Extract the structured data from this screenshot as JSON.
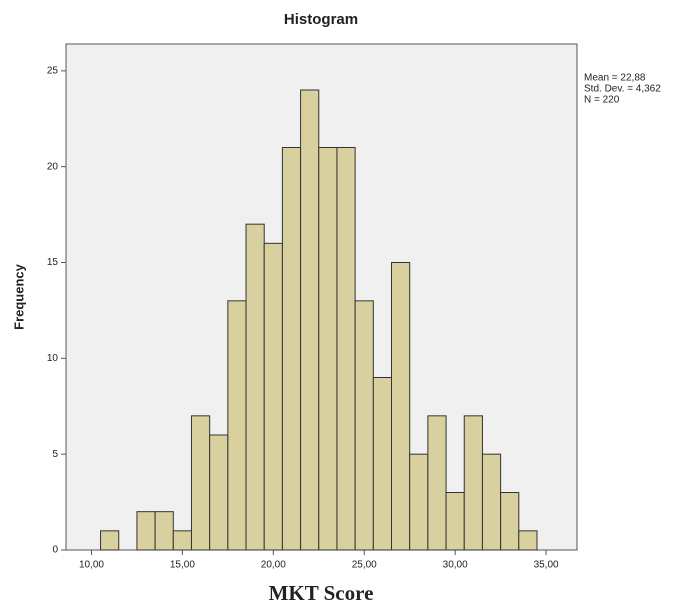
{
  "chart_data": {
    "type": "histogram",
    "title": "Histogram",
    "xlabel": "MKT Score",
    "ylabel": "Frequency",
    "bins": [
      10.5,
      11.5,
      12.5,
      13.5,
      14.5,
      15.5,
      16.5,
      17.5,
      18.5,
      19.5,
      20.5,
      21.5,
      22.5,
      23.5,
      24.5,
      25.5,
      26.5,
      27.5,
      28.5,
      29.5,
      30.5,
      31.5,
      32.5,
      33.5,
      34.5
    ],
    "counts": [
      1,
      0,
      2,
      2,
      1,
      7,
      6,
      13,
      17,
      16,
      21,
      24,
      21,
      21,
      13,
      9,
      15,
      5,
      7,
      3,
      7,
      5,
      3,
      1
    ],
    "color": "#d8d09e",
    "xlim": [
      8.6,
      36.7
    ],
    "ylim": [
      0,
      26.4
    ],
    "xticks": [
      {
        "value": 10,
        "label": "10,00"
      },
      {
        "value": 15,
        "label": "15,00"
      },
      {
        "value": 20,
        "label": "20,00"
      },
      {
        "value": 25,
        "label": "25,00"
      },
      {
        "value": 30,
        "label": "30,00"
      },
      {
        "value": 35,
        "label": "35,00"
      }
    ],
    "yticks": [
      0,
      5,
      10,
      15,
      20,
      25
    ],
    "annotations": [
      "Mean = 22,88",
      "Std. Dev. = 4,362",
      "N = 220"
    ]
  }
}
